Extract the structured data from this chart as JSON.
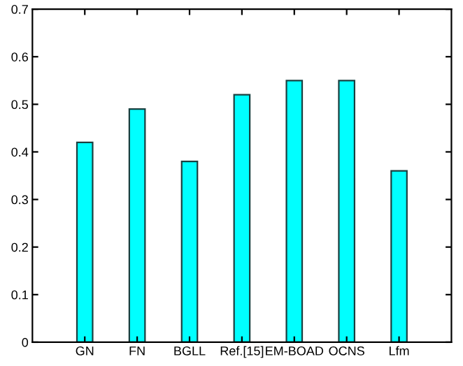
{
  "chart_data": {
    "type": "bar",
    "categories": [
      "GN",
      "FN",
      "BGLL",
      "Ref.[15]",
      "EM-BOAD",
      "OCNS",
      "Lfm"
    ],
    "values": [
      0.42,
      0.49,
      0.38,
      0.52,
      0.55,
      0.55,
      0.36
    ],
    "color": "#00ffff",
    "ylim": [
      0,
      0.7
    ],
    "yticks": [
      0,
      0.1,
      0.2,
      0.3,
      0.4,
      0.5,
      0.6,
      0.7
    ],
    "grid": false
  }
}
